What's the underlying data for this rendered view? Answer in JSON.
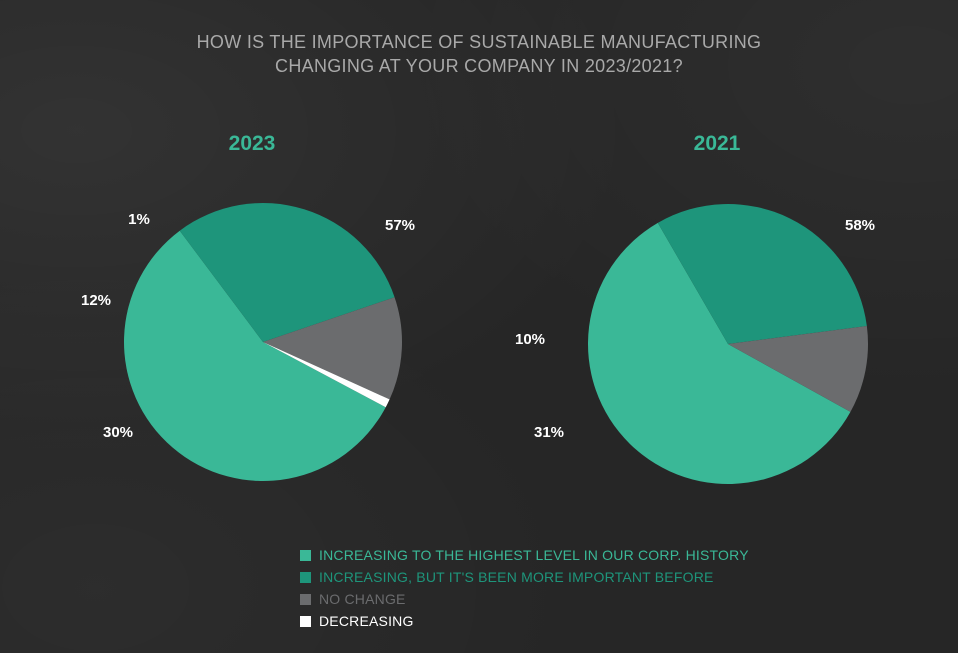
{
  "title": {
    "line1": "HOW IS THE IMPORTANCE OF SUSTAINABLE MANUFACTURING",
    "line2": "CHANGING AT YOUR COMPANY IN 2023/2021?"
  },
  "colors": {
    "highest": "#3ab897",
    "more_before": "#1e957b",
    "no_change": "#6b6c6e",
    "decreasing": "#ffffff",
    "heading": "#3ab897",
    "title": "#a9a9a9"
  },
  "legend": [
    {
      "label": "INCREASING TO THE HIGHEST LEVEL IN OUR CORP. HISTORY",
      "color": "#3ab897"
    },
    {
      "label": "INCREASING, BUT IT'S BEEN MORE IMPORTANT BEFORE",
      "color": "#1e957b"
    },
    {
      "label": "NO CHANGE",
      "color": "#6b6c6e"
    },
    {
      "label": "DECREASING",
      "color": "#ffffff"
    }
  ],
  "chart_data": [
    {
      "type": "pie",
      "title": "2023",
      "categories": [
        "INCREASING TO THE HIGHEST LEVEL IN OUR CORP. HISTORY",
        "INCREASING, BUT IT'S BEEN MORE IMPORTANT BEFORE",
        "NO CHANGE",
        "DECREASING"
      ],
      "values": [
        57,
        30,
        12,
        1
      ],
      "labels": [
        "57%",
        "30%",
        "12%",
        "1%"
      ]
    },
    {
      "type": "pie",
      "title": "2021",
      "categories": [
        "INCREASING TO THE HIGHEST LEVEL IN OUR CORP. HISTORY",
        "INCREASING, BUT IT'S BEEN MORE IMPORTANT BEFORE",
        "NO CHANGE"
      ],
      "values": [
        58,
        31,
        10
      ],
      "labels": [
        "58%",
        "31%",
        "10%"
      ]
    }
  ]
}
